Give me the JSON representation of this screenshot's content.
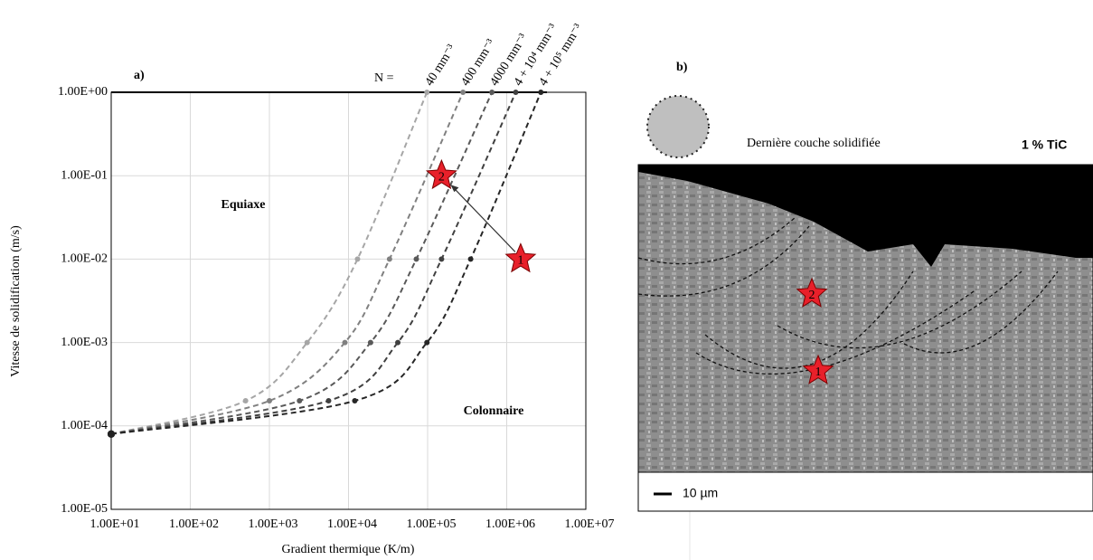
{
  "chart_data": {
    "type": "line",
    "panel_label": "a)",
    "x_label": "Gradient thermique (K/m)",
    "y_label": "Vitesse de solidification (m/s)",
    "xscale": "log",
    "yscale": "log",
    "grid": true,
    "xlim": [
      10,
      10000000
    ],
    "ylim": [
      1e-05,
      1
    ],
    "xticks": [
      {
        "value": 10,
        "label": "1.00E+01"
      },
      {
        "value": 100,
        "label": "1.00E+02"
      },
      {
        "value": 1000,
        "label": "1.00E+03"
      },
      {
        "value": 10000,
        "label": "1.00E+04"
      },
      {
        "value": 100000,
        "label": "1.00E+05"
      },
      {
        "value": 1000000,
        "label": "1.00E+06"
      },
      {
        "value": 10000000,
        "label": "1.00E+07"
      }
    ],
    "yticks": [
      {
        "value": 1e-05,
        "label": "1.00E-05"
      },
      {
        "value": 0.0001,
        "label": "1.00E-04"
      },
      {
        "value": 0.001,
        "label": "1.00E-03"
      },
      {
        "value": 0.01,
        "label": "1.00E-02"
      },
      {
        "value": 0.1,
        "label": "1.00E-01"
      },
      {
        "value": 1,
        "label": "1.00E+00"
      }
    ],
    "series_prefix": "N =",
    "series": [
      {
        "name": "40 mm⁻³",
        "color": "#a6a6a6",
        "x": [
          10,
          500,
          3000,
          13000,
          98000
        ],
        "values": [
          8e-05,
          0.0002,
          0.001,
          0.01,
          1
        ]
      },
      {
        "name": "400 mm⁻³",
        "color": "#808080",
        "x": [
          10,
          1000,
          9000,
          33000,
          280000
        ],
        "values": [
          8e-05,
          0.0002,
          0.001,
          0.01,
          1
        ]
      },
      {
        "name": "4000 mm⁻³",
        "color": "#595959",
        "x": [
          10,
          2400,
          19000,
          72000,
          650000
        ],
        "values": [
          8e-05,
          0.0002,
          0.001,
          0.01,
          1
        ]
      },
      {
        "name": "4 + 10⁴ mm⁻³",
        "color": "#404040",
        "x": [
          10,
          5600,
          42000,
          150000,
          1300000
        ],
        "values": [
          8e-05,
          0.0002,
          0.001,
          0.01,
          1
        ]
      },
      {
        "name": "4 + 10⁵ mm⁻³",
        "color": "#262626",
        "x": [
          10,
          12000,
          98000,
          350000,
          2700000
        ],
        "values": [
          8e-05,
          0.0002,
          0.001,
          0.01,
          1
        ]
      }
    ],
    "markers": [
      {
        "label": "1",
        "x": 1500000,
        "y": 0.01
      },
      {
        "label": "2",
        "x": 150000,
        "y": 0.1
      }
    ],
    "marker_color": "#e8202a",
    "annotations": [
      "Equiaxe",
      "Colonnaire"
    ]
  },
  "micrograph": {
    "panel_label": "b)",
    "caption": "Dernière couche solidifiée",
    "composition": "1 % TiC",
    "scale_bar": "10 µm",
    "star_labels": [
      "2",
      "1"
    ]
  }
}
